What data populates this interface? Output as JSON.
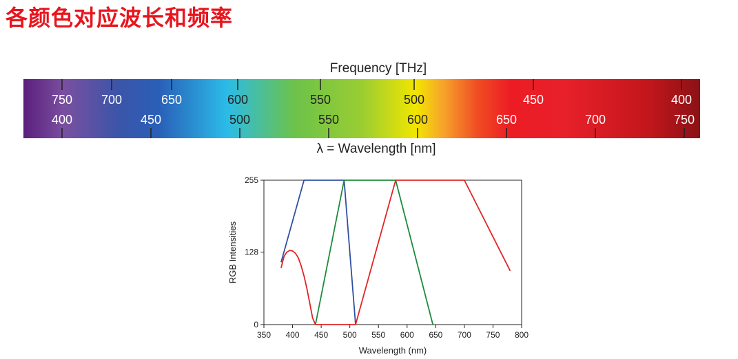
{
  "page": {
    "title": "各颜色对应波长和频率"
  },
  "spectrum": {
    "frequency_label": "Frequency [THz]",
    "wavelength_label": "λ = Wavelength [nm]",
    "frequency_ticks": [
      "750",
      "700",
      "650",
      "600",
      "550",
      "500",
      "450",
      "400"
    ],
    "wavelength_ticks": [
      "400",
      "450",
      "500",
      "550",
      "600",
      "650",
      "700",
      "750"
    ],
    "colors": [
      "#5a1f7d",
      "#7a4fa0",
      "#3b55a8",
      "#2a5fb8",
      "#2bbbe8",
      "#6cc24a",
      "#9acd32",
      "#f2e600",
      "#f7a32b",
      "#f04e23",
      "#ec1c24",
      "#e8202a",
      "#c4161c",
      "#8b1216"
    ]
  },
  "chart_data": {
    "type": "line",
    "xlabel": "Wavelength (nm)",
    "ylabel": "RGB Intensities",
    "xlim": [
      350,
      800
    ],
    "ylim": [
      0,
      255
    ],
    "x_ticks": [
      350,
      400,
      450,
      500,
      550,
      600,
      650,
      700,
      750,
      800
    ],
    "y_ticks": [
      0,
      128,
      255
    ],
    "series": [
      {
        "color": "#3050a0",
        "x": [
          380,
          420,
          490,
          510
        ],
        "y": [
          110,
          255,
          255,
          0
        ]
      },
      {
        "color": "#1e8a3c",
        "x": [
          440,
          490,
          580,
          645
        ],
        "y": [
          0,
          255,
          255,
          0
        ]
      },
      {
        "color": "#e02525",
        "x": [
          380,
          385,
          390,
          395,
          400,
          405,
          410,
          415,
          420,
          425,
          430,
          435,
          440,
          510,
          580,
          700,
          780
        ],
        "y": [
          100,
          120,
          128,
          131,
          130,
          126,
          118,
          104,
          86,
          64,
          38,
          12,
          0,
          0,
          255,
          255,
          95
        ]
      }
    ]
  }
}
